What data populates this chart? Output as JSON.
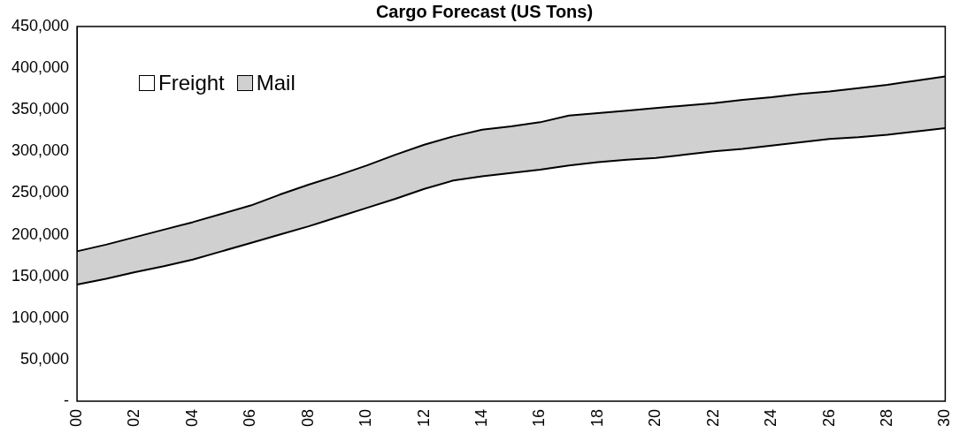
{
  "chart_data": {
    "type": "area",
    "title": "Cargo Forecast (US Tons)",
    "categories": [
      "00",
      null,
      "02",
      null,
      "04",
      null,
      "06",
      null,
      "08",
      null,
      "10",
      null,
      "12",
      null,
      "14",
      null,
      "16",
      null,
      "18",
      null,
      "20",
      null,
      "22",
      null,
      "24",
      null,
      "26",
      null,
      "28",
      null,
      "30"
    ],
    "series": [
      {
        "name": "Freight",
        "color": "#ffffff",
        "values": [
          140000,
          147000,
          155000,
          162000,
          170000,
          180000,
          190000,
          200000,
          210000,
          221000,
          232000,
          243000,
          255000,
          265000,
          270000,
          274000,
          278000,
          283000,
          287000,
          290000,
          292000,
          296000,
          300000,
          303000,
          307000,
          311000,
          315000,
          317000,
          320000,
          324000,
          328000
        ]
      },
      {
        "name": "Mail",
        "color": "#d0d0d0",
        "values": [
          40000,
          41000,
          42000,
          44000,
          45000,
          45000,
          45000,
          48000,
          50000,
          50000,
          51000,
          53000,
          53000,
          53000,
          56000,
          56000,
          57000,
          60000,
          59000,
          59000,
          60000,
          59000,
          58000,
          59000,
          58000,
          58000,
          57000,
          59000,
          60000,
          61000,
          62000
        ]
      }
    ],
    "stacked": true,
    "ylim": [
      0,
      450000
    ],
    "yticks": [
      {
        "value": 0,
        "label": "-"
      },
      {
        "value": 50000,
        "label": "50,000"
      },
      {
        "value": 100000,
        "label": "100,000"
      },
      {
        "value": 150000,
        "label": "150,000"
      },
      {
        "value": 200000,
        "label": "200,000"
      },
      {
        "value": 250000,
        "label": "250,000"
      },
      {
        "value": 300000,
        "label": "300,000"
      },
      {
        "value": 350000,
        "label": "350,000"
      },
      {
        "value": 400000,
        "label": "400,000"
      },
      {
        "value": 450000,
        "label": "450,000"
      }
    ],
    "grid": false,
    "legend": "top left"
  }
}
